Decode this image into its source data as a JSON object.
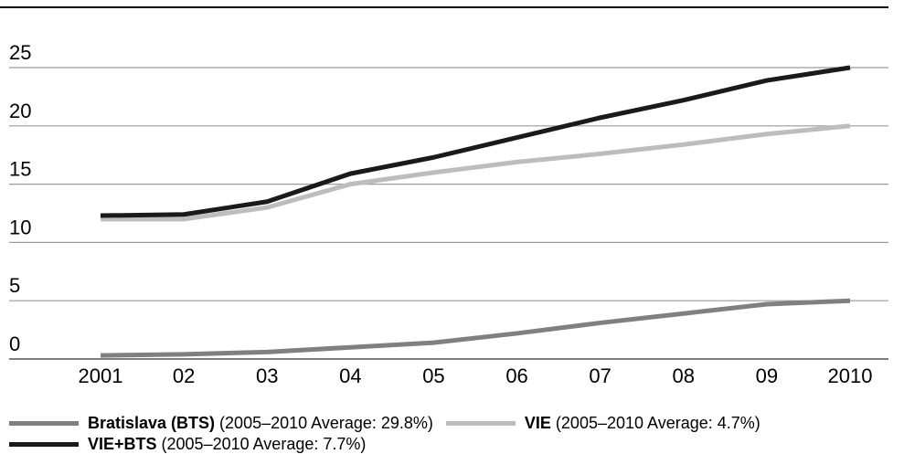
{
  "chart_data": {
    "type": "line",
    "title": "",
    "categories": [
      "2001",
      "02",
      "03",
      "04",
      "05",
      "06",
      "07",
      "08",
      "09",
      "2010"
    ],
    "ylim": [
      0,
      25
    ],
    "yticks": [
      0,
      5,
      10,
      15,
      20,
      25
    ],
    "grid": true,
    "legend_position": "bottom",
    "series": [
      {
        "name": "Bratislava (BTS)",
        "note": "(2005–2010 Average: 29.8%)",
        "color": "#808080",
        "values": [
          0.3,
          0.4,
          0.6,
          1.0,
          1.4,
          2.2,
          3.1,
          3.9,
          4.7,
          5.0
        ]
      },
      {
        "name": "VIE",
        "note": "(2005–2010 Average: 4.7%)",
        "color": "#bdbdbd",
        "values": [
          12.0,
          12.0,
          13.0,
          15.0,
          16.0,
          16.9,
          17.6,
          18.4,
          19.3,
          20.0
        ]
      },
      {
        "name": "VIE+BTS",
        "note": "(2005–2010 Average: 7.7%)",
        "color": "#1a1a1a",
        "values": [
          12.3,
          12.4,
          13.5,
          15.9,
          17.3,
          19.0,
          20.7,
          22.2,
          23.9,
          25.0
        ]
      }
    ]
  }
}
